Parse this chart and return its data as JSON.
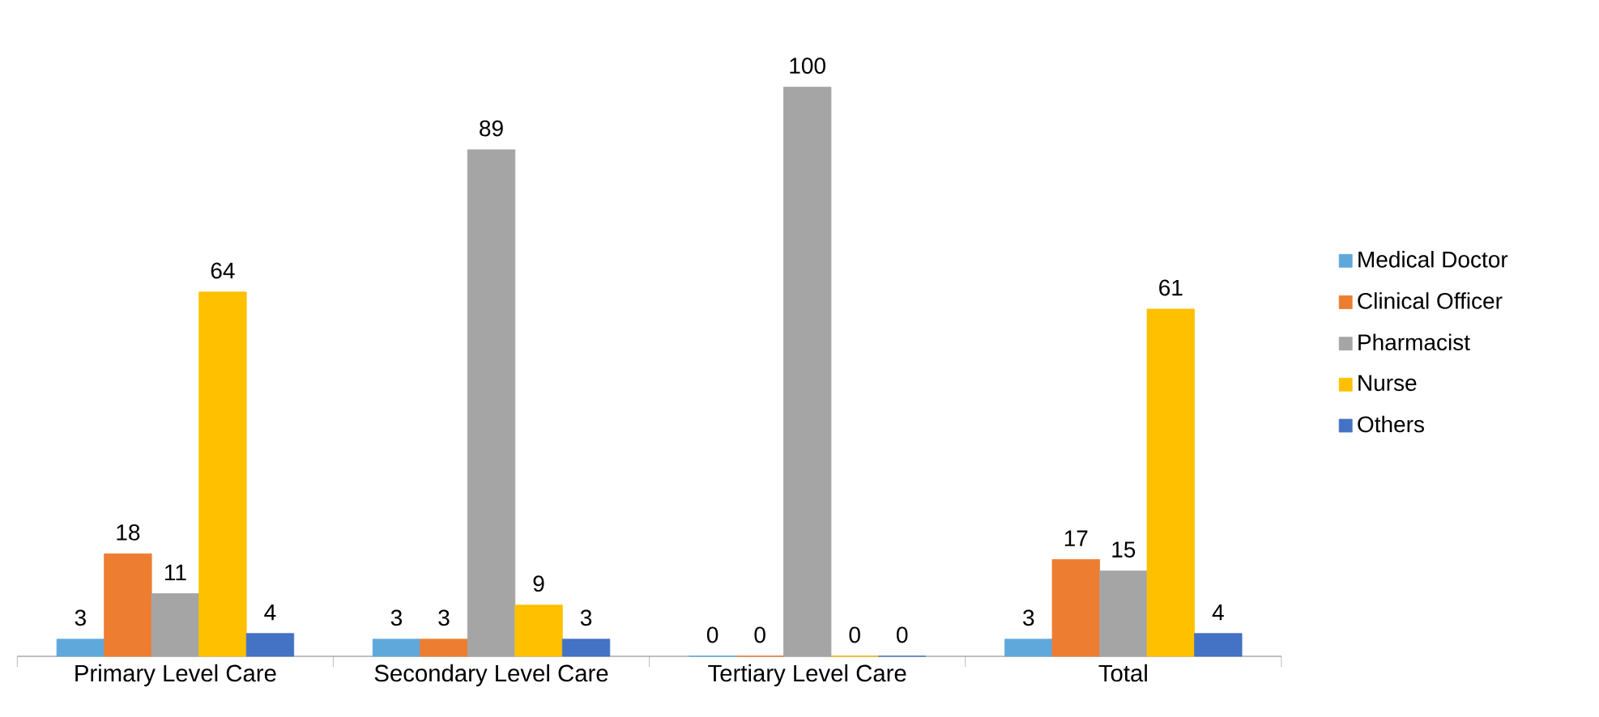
{
  "chart_data": {
    "type": "bar",
    "categories": [
      "Primary Level Care",
      "Secondary Level Care",
      "Tertiary Level Care",
      "Total"
    ],
    "series": [
      {
        "name": "Medical Doctor",
        "color": "#5fa8dc",
        "values": [
          3,
          3,
          0,
          3
        ]
      },
      {
        "name": "Clinical Officer",
        "color": "#ed7d31",
        "values": [
          18,
          3,
          0,
          17
        ]
      },
      {
        "name": "Pharmacist",
        "color": "#a5a5a5",
        "values": [
          11,
          89,
          100,
          15
        ]
      },
      {
        "name": "Nurse",
        "color": "#ffc000",
        "values": [
          64,
          9,
          0,
          61
        ]
      },
      {
        "name": "Others",
        "color": "#4472c4",
        "values": [
          4,
          3,
          0,
          4
        ]
      }
    ],
    "data_labels": true,
    "legend": "right"
  }
}
